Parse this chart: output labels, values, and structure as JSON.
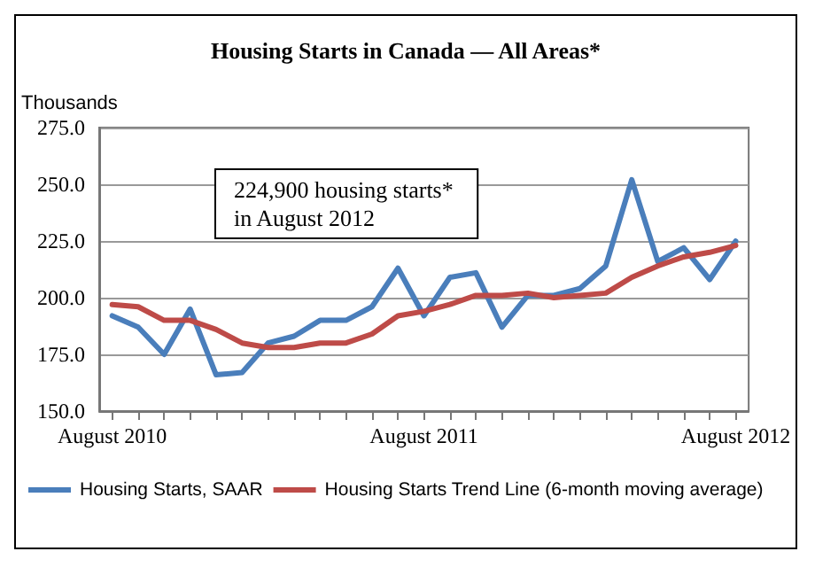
{
  "chart_data": {
    "type": "line",
    "title": "Housing Starts in Canada — All Areas*",
    "ylabel": "Thousands",
    "categories": [
      "August 2010",
      null,
      null,
      null,
      null,
      null,
      null,
      null,
      null,
      null,
      null,
      null,
      "August 2011",
      null,
      null,
      null,
      null,
      null,
      null,
      null,
      null,
      null,
      null,
      null,
      "August 2012"
    ],
    "series": [
      {
        "name": "Housing Starts, SAAR",
        "color": "#4a7ebb",
        "values": [
          192,
          187,
          175,
          195,
          166,
          167,
          180,
          183,
          190,
          190,
          196,
          213,
          192,
          209,
          211,
          187,
          201,
          201,
          204,
          214,
          252,
          216,
          222,
          208,
          224.9
        ]
      },
      {
        "name": "Housing Starts Trend Line (6-month moving average)",
        "color": "#be4b48",
        "values": [
          197,
          196,
          190,
          190,
          186,
          180,
          178,
          178,
          180,
          180,
          184,
          192,
          194,
          197,
          201,
          201,
          202,
          200,
          201,
          202,
          209,
          214,
          218,
          220,
          223
        ]
      }
    ],
    "ylim": [
      150,
      275
    ],
    "yticks": [
      {
        "value": 150,
        "label": "150.0"
      },
      {
        "value": 175,
        "label": "175.0"
      },
      {
        "value": 200,
        "label": "200.0"
      },
      {
        "value": 225,
        "label": "225.0"
      },
      {
        "value": 250,
        "label": "250.0"
      },
      {
        "value": 275,
        "label": "275.0"
      }
    ],
    "grid": "y",
    "legend": "bottom",
    "marker": "none",
    "line_style": "solid",
    "annotations": [
      "224,900 housing starts* \nin August 2012"
    ]
  }
}
